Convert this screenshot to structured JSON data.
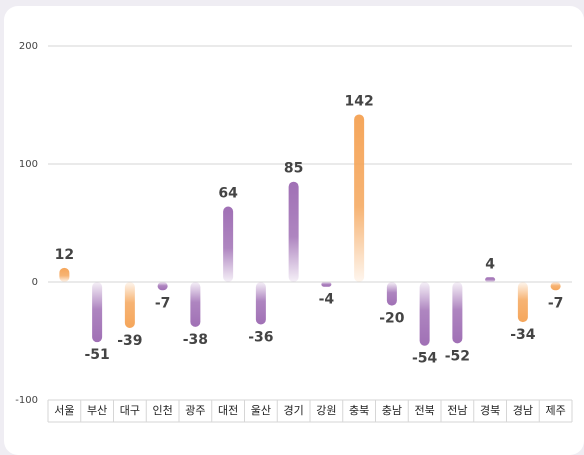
{
  "chart_data": {
    "type": "bar",
    "categories": [
      "서울",
      "부산",
      "대구",
      "인천",
      "광주",
      "대전",
      "울산",
      "경기",
      "강원",
      "충북",
      "충남",
      "전북",
      "전남",
      "경북",
      "경남",
      "제주"
    ],
    "values": [
      12,
      -51,
      -39,
      -7,
      -38,
      64,
      -36,
      85,
      -4,
      142,
      -20,
      -54,
      -52,
      4,
      -34,
      -7
    ],
    "colors": [
      "#f5a65b",
      "#a070b5",
      "#f5a65b",
      "#a070b5",
      "#a070b5",
      "#a070b5",
      "#a070b5",
      "#a070b5",
      "#a070b5",
      "#f5a65b",
      "#a070b5",
      "#a070b5",
      "#a070b5",
      "#a070b5",
      "#f5a65b",
      "#f5a65b"
    ],
    "ylim": [
      -100,
      200
    ],
    "yticks": [
      -100,
      0,
      100,
      200
    ],
    "grid": true
  }
}
